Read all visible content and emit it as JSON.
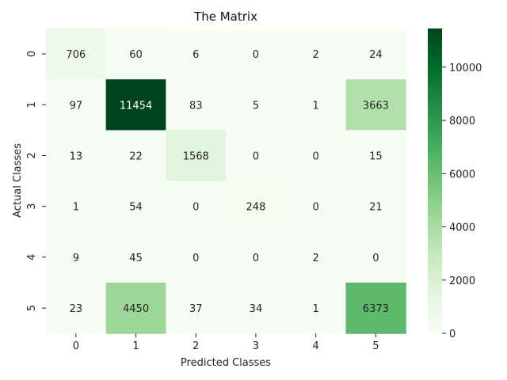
{
  "chart_data": {
    "type": "heatmap",
    "title": "The Matrix",
    "xlabel": "Predicted Classes",
    "ylabel": "Actual Classes",
    "x_categories": [
      "0",
      "1",
      "2",
      "3",
      "4",
      "5"
    ],
    "y_categories": [
      "0",
      "1",
      "2",
      "3",
      "4",
      "5"
    ],
    "values": [
      [
        706,
        60,
        6,
        0,
        2,
        24
      ],
      [
        97,
        11454,
        83,
        5,
        1,
        3663
      ],
      [
        13,
        22,
        1568,
        0,
        0,
        15
      ],
      [
        1,
        54,
        0,
        248,
        0,
        21
      ],
      [
        9,
        45,
        0,
        0,
        2,
        0
      ],
      [
        23,
        4450,
        37,
        34,
        1,
        6373
      ]
    ],
    "colorbar": {
      "colormap": "Greens",
      "range": [
        0,
        11454
      ],
      "ticks": [
        0,
        2000,
        4000,
        6000,
        8000,
        10000
      ],
      "tick_labels": [
        "0",
        "2000",
        "4000",
        "6000",
        "8000",
        "10000"
      ]
    },
    "grid": false,
    "legend": "none"
  }
}
